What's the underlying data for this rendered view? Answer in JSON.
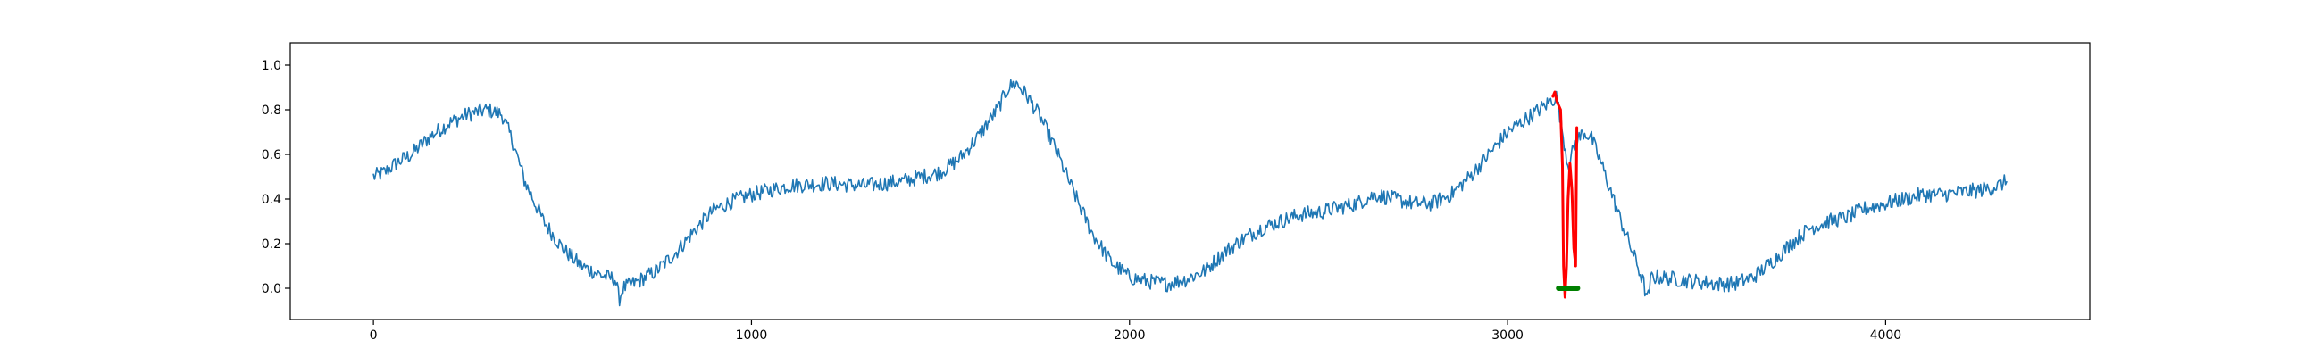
{
  "chart_data": {
    "type": "line",
    "title": "",
    "xlabel": "",
    "ylabel": "",
    "xlim": [
      -220,
      4540
    ],
    "ylim": [
      -0.14,
      1.1
    ],
    "x_ticks": [
      0,
      1000,
      2000,
      3000,
      4000
    ],
    "x_tick_labels": [
      "0",
      "1000",
      "2000",
      "3000",
      "4000"
    ],
    "y_ticks": [
      0.0,
      0.2,
      0.4,
      0.6,
      0.8,
      1.0
    ],
    "y_tick_labels": [
      "0.0",
      "0.2",
      "0.4",
      "0.6",
      "0.8",
      "1.0"
    ],
    "grid": false,
    "legend": "none",
    "series": [
      {
        "color": "#1f77b4",
        "noise": 0.035,
        "x": [
          0,
          30,
          60,
          100,
          150,
          200,
          250,
          300,
          340,
          370,
          400,
          450,
          500,
          550,
          600,
          640,
          650,
          660,
          700,
          750,
          800,
          850,
          900,
          950,
          1000,
          1050,
          1100,
          1200,
          1300,
          1400,
          1500,
          1550,
          1600,
          1650,
          1680,
          1700,
          1730,
          1760,
          1800,
          1850,
          1900,
          1950,
          2000,
          2050,
          2100,
          2150,
          2200,
          2250,
          2300,
          2350,
          2400,
          2450,
          2500,
          2550,
          2600,
          2650,
          2700,
          2750,
          2800,
          2850,
          2900,
          2950,
          3000,
          3050,
          3100,
          3130,
          3160,
          3180,
          3200,
          3220,
          3250,
          3300,
          3340,
          3360,
          3370,
          3380,
          3400,
          3450,
          3500,
          3550,
          3600,
          3650,
          3700,
          3750,
          3800,
          3850,
          3900,
          3950,
          4000,
          4050,
          4100,
          4150,
          4200,
          4250,
          4300,
          4320
        ],
        "y": [
          0.5,
          0.52,
          0.56,
          0.6,
          0.68,
          0.74,
          0.78,
          0.8,
          0.78,
          0.65,
          0.48,
          0.3,
          0.18,
          0.1,
          0.06,
          0.04,
          -0.05,
          0.0,
          0.03,
          0.08,
          0.16,
          0.26,
          0.35,
          0.39,
          0.42,
          0.44,
          0.46,
          0.47,
          0.46,
          0.48,
          0.52,
          0.58,
          0.68,
          0.8,
          0.9,
          0.92,
          0.86,
          0.78,
          0.64,
          0.44,
          0.25,
          0.12,
          0.05,
          0.03,
          0.02,
          0.04,
          0.08,
          0.16,
          0.22,
          0.27,
          0.3,
          0.33,
          0.34,
          0.36,
          0.38,
          0.42,
          0.4,
          0.38,
          0.38,
          0.42,
          0.5,
          0.6,
          0.7,
          0.76,
          0.82,
          0.86,
          0.55,
          0.65,
          0.7,
          0.68,
          0.55,
          0.3,
          0.12,
          0.02,
          -0.06,
          0.05,
          0.05,
          0.04,
          0.03,
          0.02,
          0.02,
          0.05,
          0.12,
          0.2,
          0.27,
          0.3,
          0.32,
          0.36,
          0.38,
          0.4,
          0.42,
          0.42,
          0.43,
          0.44,
          0.46,
          0.48
        ]
      },
      {
        "color": "#ff0000",
        "x": [
          3120,
          3125,
          3130,
          3135,
          3140,
          3145,
          3148,
          3152,
          3156,
          3160,
          3165,
          3170,
          3175,
          3180,
          3183
        ],
        "y": [
          0.86,
          0.88,
          0.84,
          0.82,
          0.8,
          0.55,
          0.1,
          -0.04,
          0.1,
          0.4,
          0.56,
          0.44,
          0.18,
          0.1,
          0.72
        ]
      },
      {
        "color": "#008000",
        "x": [
          3135,
          3140,
          3145,
          3150,
          3155,
          3160,
          3165,
          3170,
          3175,
          3180,
          3185
        ],
        "y": [
          0.0,
          0.0,
          0.0,
          0.0,
          0.0,
          0.0,
          0.0,
          0.0,
          0.0,
          0.0,
          0.0
        ]
      }
    ]
  }
}
